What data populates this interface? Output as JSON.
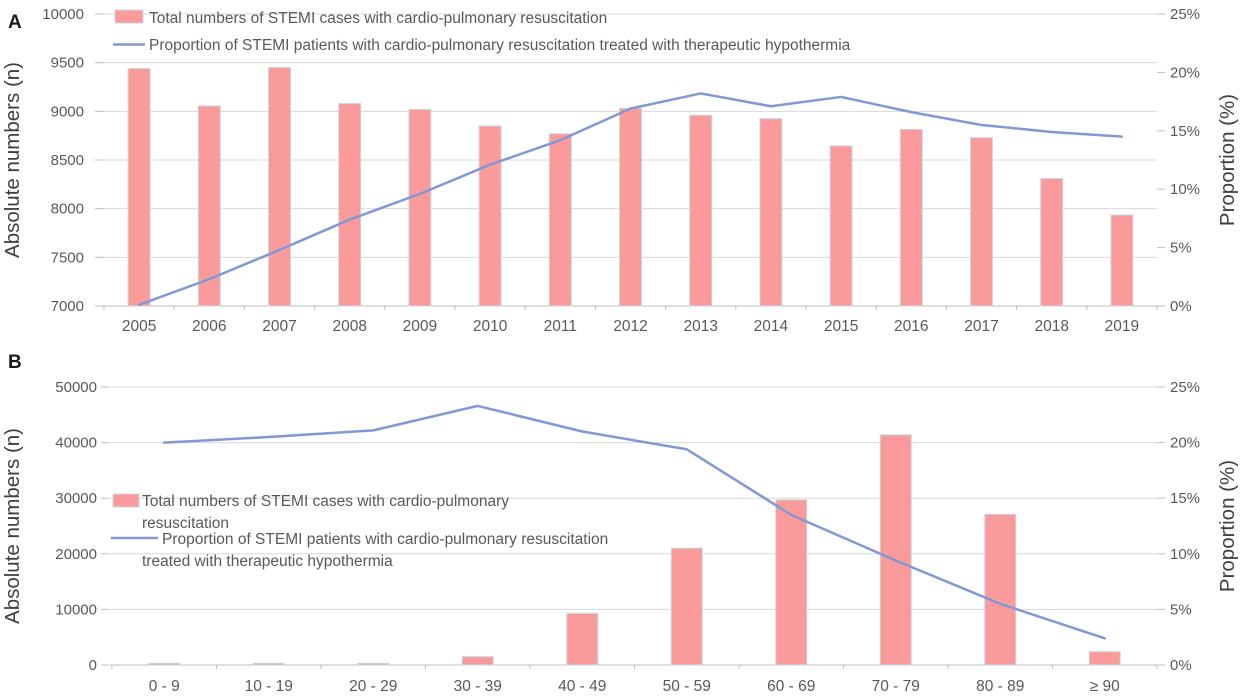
{
  "figure": {
    "panels": [
      "A",
      "B"
    ],
    "colors": {
      "bar_fill": "#FA9A9A",
      "bar_stroke": "#C7D9E2",
      "line": "#8099D4",
      "grid": "#D9D9D9",
      "axis_line": "#BFBFBF",
      "text": "#595959",
      "panel_letter": "#1A1A1A",
      "background": "#FFFFFF"
    }
  },
  "chart_data": [
    {
      "panel": "A",
      "type": "bar",
      "subtype": "bar+line dual axis",
      "categories": [
        "2005",
        "2006",
        "2007",
        "2008",
        "2009",
        "2010",
        "2011",
        "2012",
        "2013",
        "2014",
        "2015",
        "2016",
        "2017",
        "2018",
        "2019"
      ],
      "series": [
        {
          "name": "Total numbers of STEMI cases with cardio-pulmonary resuscitation",
          "type": "bar",
          "axis": "left",
          "values": [
            9440,
            9055,
            9450,
            9080,
            9020,
            8850,
            8770,
            9030,
            8960,
            8925,
            8645,
            8815,
            8730,
            8310,
            7935
          ]
        },
        {
          "name": "Proportion of STEMI patients with cardio-pulmonary resuscitation treated with therapeutic hypothermia",
          "type": "line",
          "axis": "right",
          "values_percent": [
            0.1,
            2.3,
            4.8,
            7.4,
            9.6,
            12.1,
            14.2,
            16.9,
            18.2,
            17.1,
            17.9,
            16.6,
            15.5,
            14.9,
            14.5
          ]
        }
      ],
      "left_axis": {
        "title": "Absolute numbers (n)",
        "min": 7000,
        "max": 10000,
        "tick_labels": [
          "7000",
          "7500",
          "8000",
          "8500",
          "9000",
          "9500",
          "10000"
        ],
        "tick_values": [
          7000,
          7500,
          8000,
          8500,
          9000,
          9500,
          10000
        ]
      },
      "right_axis": {
        "title": "Proportion (%)",
        "min": 0,
        "max": 25,
        "tick_labels": [
          "0%",
          "5%",
          "10%",
          "15%",
          "20%",
          "25%"
        ],
        "tick_values": [
          0,
          5,
          10,
          15,
          20,
          25
        ]
      },
      "grid": "horizontal",
      "legend": {
        "position": "top-left-inside",
        "items": [
          {
            "marker": "rect",
            "lines": [
              "Total numbers of STEMI cases with cardio-pulmonary resuscitation"
            ]
          },
          {
            "marker": "line",
            "lines": [
              "Proportion of STEMI patients with cardio-pulmonary resuscitation treated with therapeutic hypothermia"
            ]
          }
        ]
      }
    },
    {
      "panel": "B",
      "type": "bar",
      "subtype": "bar+line dual axis",
      "categories": [
        "0 - 9",
        "10 - 19",
        "20 - 29",
        "30 - 39",
        "40 - 49",
        "50 - 59",
        "60 - 69",
        "70 - 79",
        "80 - 89",
        "≥ 90"
      ],
      "series": [
        {
          "name": "Total numbers of STEMI cases with cardio-pulmonary resuscitation",
          "type": "bar",
          "axis": "left",
          "values": [
            300,
            300,
            300,
            1500,
            9300,
            21000,
            29700,
            41400,
            27100,
            2400
          ]
        },
        {
          "name": "Proportion of STEMI patients with cardio-pulmonary resuscitation treated with therapeutic hypothermia",
          "type": "line",
          "axis": "right",
          "values_percent": [
            20.0,
            20.5,
            21.1,
            23.3,
            21.0,
            19.4,
            13.5,
            9.4,
            5.5,
            2.4
          ]
        }
      ],
      "left_axis": {
        "title": "Absolute numbers (n)",
        "min": 0,
        "max": 50000,
        "tick_labels": [
          "0",
          "10000",
          "20000",
          "30000",
          "40000",
          "50000"
        ],
        "tick_values": [
          0,
          10000,
          20000,
          30000,
          40000,
          50000
        ]
      },
      "right_axis": {
        "title": "Proportion (%)",
        "min": 0,
        "max": 25,
        "tick_labels": [
          "0%",
          "5%",
          "10%",
          "15%",
          "20%",
          "25%"
        ],
        "tick_values": [
          0,
          5,
          10,
          15,
          20,
          25
        ]
      },
      "grid": "horizontal",
      "legend": {
        "position": "middle-left-inside",
        "items": [
          {
            "marker": "rect",
            "lines": [
              "Total numbers of STEMI cases with cardio-pulmonary",
              "resuscitation"
            ]
          },
          {
            "marker": "line",
            "lines": [
              "Proportion of STEMI patients with cardio-pulmonary resuscitation",
              "treated with therapeutic hypothermia"
            ]
          }
        ]
      }
    }
  ]
}
